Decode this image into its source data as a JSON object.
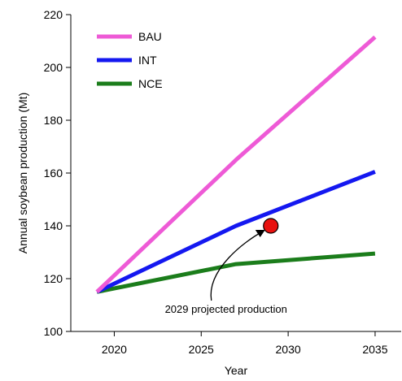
{
  "chart_data": {
    "type": "line",
    "title": "",
    "xlabel": "Year",
    "ylabel": "Annual soybean production (Mt)",
    "xlim": [
      2017.5,
      2036.5
    ],
    "ylim": [
      100,
      220
    ],
    "x_ticks": [
      2020,
      2025,
      2030,
      2035
    ],
    "y_ticks": [
      100,
      120,
      140,
      160,
      180,
      200,
      220
    ],
    "grid": false,
    "legend_position": "top-left",
    "series": [
      {
        "name": "BAU",
        "color": "#ee5ad6",
        "points": [
          [
            2019,
            115
          ],
          [
            2027,
            165
          ],
          [
            2035,
            211.5
          ]
        ]
      },
      {
        "name": "INT",
        "color": "#1418f0",
        "points": [
          [
            2019,
            115
          ],
          [
            2027,
            140
          ],
          [
            2035,
            160.5
          ]
        ]
      },
      {
        "name": "NCE",
        "color": "#1b7d1b",
        "points": [
          [
            2019,
            115
          ],
          [
            2027,
            125.5
          ],
          [
            2035,
            129.5
          ]
        ]
      }
    ],
    "marker": {
      "x": 2029,
      "y": 140,
      "color": "#e8110f"
    },
    "annotation": {
      "text": "2029 projected production",
      "arrow_to": [
        2029,
        140
      ]
    }
  }
}
